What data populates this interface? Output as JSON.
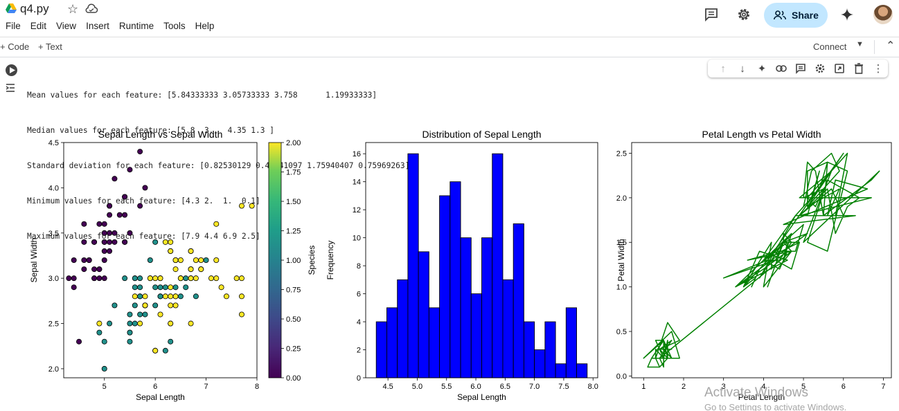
{
  "header": {
    "file_name": "q4.py",
    "menu": [
      "File",
      "Edit",
      "View",
      "Insert",
      "Runtime",
      "Tools",
      "Help"
    ],
    "share_label": "Share"
  },
  "toolbar": {
    "add_code_label": "+ Code",
    "add_text_label": "+ Text",
    "connect_label": "Connect"
  },
  "output": {
    "lines": [
      "Mean values for each feature: [5.84333333 3.05733333 3.758      1.19933333]",
      "Median values for each feature: [5.8  3.   4.35 1.3 ]",
      "Standard deviation for each feature: [0.82530129 0.43441097 1.75940407 0.75969263]",
      "Minimum values for each feature: [4.3 2.  1.  0.1]",
      "Maximum values for each feature: [7.9 4.4 6.9 2.5]"
    ]
  },
  "chart_data": [
    {
      "type": "scatter",
      "title": "Sepal Length vs Sepal Width",
      "xlabel": "Sepal Length",
      "ylabel": "Sepal Width",
      "xlim": [
        4.2,
        8.0
      ],
      "ylim": [
        1.9,
        4.5
      ],
      "xticks": [
        5,
        6,
        7,
        8
      ],
      "yticks": [
        "2.0",
        "2.5",
        "3.0",
        "3.5",
        "4.0",
        "4.5"
      ],
      "colorbar": {
        "label": "Species",
        "range": [
          0,
          2
        ],
        "ticks": [
          "0.00",
          "0.25",
          "0.50",
          "0.75",
          "1.00",
          "1.25",
          "1.50",
          "1.75",
          "2.00"
        ],
        "colormap": "viridis"
      },
      "series": [
        {
          "species": 0,
          "color": "#440154",
          "points": [
            [
              5.1,
              3.5
            ],
            [
              4.9,
              3.0
            ],
            [
              4.7,
              3.2
            ],
            [
              4.6,
              3.1
            ],
            [
              5.0,
              3.6
            ],
            [
              5.4,
              3.9
            ],
            [
              4.6,
              3.4
            ],
            [
              5.0,
              3.4
            ],
            [
              4.4,
              2.9
            ],
            [
              4.9,
              3.1
            ],
            [
              5.4,
              3.7
            ],
            [
              4.8,
              3.4
            ],
            [
              4.8,
              3.0
            ],
            [
              4.3,
              3.0
            ],
            [
              5.8,
              4.0
            ],
            [
              5.7,
              4.4
            ],
            [
              5.4,
              3.9
            ],
            [
              5.1,
              3.5
            ],
            [
              5.7,
              3.8
            ],
            [
              5.1,
              3.8
            ],
            [
              5.4,
              3.4
            ],
            [
              5.1,
              3.7
            ],
            [
              4.6,
              3.6
            ],
            [
              5.1,
              3.3
            ],
            [
              4.8,
              3.4
            ],
            [
              5.0,
              3.0
            ],
            [
              5.0,
              3.4
            ],
            [
              5.2,
              3.5
            ],
            [
              5.2,
              3.4
            ],
            [
              4.7,
              3.2
            ],
            [
              4.8,
              3.1
            ],
            [
              5.4,
              3.4
            ],
            [
              5.2,
              4.1
            ],
            [
              5.5,
              4.2
            ],
            [
              4.9,
              3.1
            ],
            [
              5.0,
              3.2
            ],
            [
              5.5,
              3.5
            ],
            [
              4.9,
              3.6
            ],
            [
              4.4,
              3.0
            ],
            [
              5.1,
              3.4
            ],
            [
              5.0,
              3.5
            ],
            [
              4.5,
              2.3
            ],
            [
              4.4,
              3.2
            ],
            [
              5.0,
              3.5
            ],
            [
              5.1,
              3.8
            ],
            [
              4.8,
              3.0
            ],
            [
              5.1,
              3.8
            ],
            [
              4.6,
              3.2
            ],
            [
              5.3,
              3.7
            ],
            [
              5.0,
              3.3
            ]
          ]
        },
        {
          "species": 1,
          "color": "#21918c",
          "points": [
            [
              7.0,
              3.2
            ],
            [
              6.4,
              3.2
            ],
            [
              6.9,
              3.1
            ],
            [
              5.5,
              2.3
            ],
            [
              6.5,
              2.8
            ],
            [
              5.7,
              2.8
            ],
            [
              6.3,
              3.3
            ],
            [
              4.9,
              2.4
            ],
            [
              6.6,
              2.9
            ],
            [
              5.2,
              2.7
            ],
            [
              5.0,
              2.0
            ],
            [
              5.9,
              3.0
            ],
            [
              6.0,
              2.2
            ],
            [
              6.1,
              2.9
            ],
            [
              5.6,
              2.9
            ],
            [
              6.7,
              3.1
            ],
            [
              5.6,
              3.0
            ],
            [
              5.8,
              2.7
            ],
            [
              6.2,
              2.2
            ],
            [
              5.6,
              2.5
            ],
            [
              5.9,
              3.2
            ],
            [
              6.1,
              2.8
            ],
            [
              6.3,
              2.5
            ],
            [
              6.1,
              2.8
            ],
            [
              6.4,
              2.9
            ],
            [
              6.6,
              3.0
            ],
            [
              6.8,
              2.8
            ],
            [
              6.7,
              3.0
            ],
            [
              6.0,
              2.9
            ],
            [
              5.7,
              2.6
            ],
            [
              5.5,
              2.4
            ],
            [
              5.5,
              2.4
            ],
            [
              5.8,
              2.7
            ],
            [
              6.0,
              2.7
            ],
            [
              5.4,
              3.0
            ],
            [
              6.0,
              3.4
            ],
            [
              6.7,
              3.1
            ],
            [
              6.3,
              2.3
            ],
            [
              5.6,
              3.0
            ],
            [
              5.5,
              2.5
            ],
            [
              5.5,
              2.6
            ],
            [
              6.1,
              3.0
            ],
            [
              5.8,
              2.6
            ],
            [
              5.0,
              2.3
            ],
            [
              5.6,
              2.7
            ],
            [
              5.7,
              3.0
            ],
            [
              5.7,
              2.9
            ],
            [
              6.2,
              2.9
            ],
            [
              5.1,
              2.5
            ],
            [
              5.7,
              2.8
            ]
          ]
        },
        {
          "species": 2,
          "color": "#fde725",
          "points": [
            [
              6.3,
              3.3
            ],
            [
              5.8,
              2.7
            ],
            [
              7.1,
              3.0
            ],
            [
              6.3,
              2.9
            ],
            [
              6.5,
              3.0
            ],
            [
              7.6,
              3.0
            ],
            [
              4.9,
              2.5
            ],
            [
              7.3,
              2.9
            ],
            [
              6.7,
              2.5
            ],
            [
              7.2,
              3.6
            ],
            [
              6.5,
              3.2
            ],
            [
              6.4,
              2.7
            ],
            [
              6.8,
              3.0
            ],
            [
              5.7,
              2.5
            ],
            [
              5.8,
              2.8
            ],
            [
              6.4,
              3.2
            ],
            [
              6.5,
              3.0
            ],
            [
              7.7,
              3.8
            ],
            [
              7.7,
              2.6
            ],
            [
              6.0,
              2.2
            ],
            [
              6.9,
              3.2
            ],
            [
              5.6,
              2.8
            ],
            [
              7.7,
              2.8
            ],
            [
              6.3,
              2.7
            ],
            [
              6.7,
              3.3
            ],
            [
              7.2,
              3.2
            ],
            [
              6.2,
              2.8
            ],
            [
              6.1,
              3.0
            ],
            [
              6.4,
              2.8
            ],
            [
              7.2,
              3.0
            ],
            [
              7.4,
              2.8
            ],
            [
              7.9,
              3.8
            ],
            [
              6.4,
              2.8
            ],
            [
              6.3,
              2.8
            ],
            [
              6.1,
              2.6
            ],
            [
              7.7,
              3.0
            ],
            [
              6.3,
              3.4
            ],
            [
              6.4,
              3.1
            ],
            [
              6.0,
              3.0
            ],
            [
              6.9,
              3.1
            ],
            [
              6.7,
              3.1
            ],
            [
              6.9,
              3.1
            ],
            [
              5.8,
              2.7
            ],
            [
              6.8,
              3.2
            ],
            [
              6.7,
              3.3
            ],
            [
              6.7,
              3.0
            ],
            [
              6.3,
              2.5
            ],
            [
              6.5,
              3.0
            ],
            [
              6.2,
              3.4
            ],
            [
              5.9,
              3.0
            ]
          ]
        }
      ]
    },
    {
      "type": "bar",
      "title": "Distribution of Sepal Length",
      "xlabel": "Sepal Length",
      "ylabel": "Frequency",
      "bar_color": "#0000ff",
      "bin_start": 4.3,
      "bin_width": 0.18,
      "values": [
        4,
        5,
        7,
        16,
        9,
        5,
        13,
        14,
        10,
        6,
        10,
        16,
        7,
        11,
        4,
        2,
        4,
        1,
        5,
        1
      ],
      "xlim": [
        4.12,
        8.08
      ],
      "ylim": [
        0,
        16.8
      ],
      "xticks": [
        "4.5",
        "5.0",
        "5.5",
        "6.0",
        "6.5",
        "7.0",
        "7.5",
        "8.0"
      ],
      "yticks": [
        0,
        2,
        4,
        6,
        8,
        10,
        12,
        14,
        16
      ]
    },
    {
      "type": "line",
      "title": "Petal Length vs Petal Width",
      "xlabel": "Petal Length",
      "ylabel": "Petal Width",
      "line_color": "#008000",
      "xlim": [
        0.7,
        7.2
      ],
      "ylim": [
        -0.02,
        2.62
      ],
      "xticks": [
        1,
        2,
        3,
        4,
        5,
        6,
        7
      ],
      "yticks": [
        "0.0",
        "0.5",
        "1.0",
        "1.5",
        "2.0",
        "2.5"
      ],
      "x": [
        1.4,
        1.4,
        1.3,
        1.5,
        1.4,
        1.7,
        1.4,
        1.5,
        1.4,
        1.5,
        1.5,
        1.6,
        1.4,
        1.1,
        1.2,
        1.5,
        1.3,
        1.4,
        1.7,
        1.5,
        1.7,
        1.5,
        1.0,
        1.7,
        1.9,
        1.6,
        1.6,
        1.5,
        1.4,
        1.6,
        1.6,
        1.5,
        1.5,
        1.4,
        1.5,
        1.2,
        1.3,
        1.4,
        1.3,
        1.5,
        1.3,
        1.3,
        1.3,
        1.6,
        1.9,
        1.4,
        1.6,
        1.4,
        1.5,
        1.4,
        4.7,
        4.5,
        4.9,
        4.0,
        4.6,
        4.5,
        4.7,
        3.3,
        4.6,
        3.9,
        3.5,
        4.2,
        4.0,
        4.7,
        3.6,
        4.4,
        4.5,
        4.1,
        4.5,
        3.9,
        4.8,
        4.0,
        4.9,
        4.7,
        4.3,
        4.4,
        4.8,
        5.0,
        4.5,
        3.5,
        3.8,
        3.7,
        3.9,
        5.1,
        4.5,
        4.5,
        4.7,
        4.4,
        4.1,
        4.0,
        4.4,
        4.6,
        4.0,
        3.3,
        4.2,
        4.2,
        4.2,
        4.3,
        3.0,
        4.1,
        6.0,
        5.1,
        5.9,
        5.6,
        5.8,
        6.6,
        4.5,
        6.3,
        5.8,
        6.1,
        5.1,
        5.3,
        5.5,
        5.0,
        5.1,
        5.3,
        5.5,
        6.7,
        6.9,
        5.0,
        5.7,
        4.9,
        6.7,
        4.9,
        5.7,
        6.0,
        4.8,
        4.9,
        5.6,
        5.8,
        6.1,
        6.4,
        5.6,
        5.1,
        5.6,
        6.1,
        5.6,
        5.5,
        4.8,
        5.4,
        5.6,
        5.1,
        5.1,
        5.9,
        5.7,
        5.2,
        5.0,
        5.2,
        5.4,
        5.1
      ],
      "y": [
        0.2,
        0.2,
        0.2,
        0.2,
        0.2,
        0.4,
        0.3,
        0.2,
        0.2,
        0.1,
        0.2,
        0.2,
        0.1,
        0.1,
        0.2,
        0.4,
        0.4,
        0.3,
        0.3,
        0.3,
        0.2,
        0.4,
        0.2,
        0.5,
        0.2,
        0.2,
        0.4,
        0.2,
        0.2,
        0.2,
        0.2,
        0.4,
        0.1,
        0.2,
        0.2,
        0.2,
        0.2,
        0.1,
        0.2,
        0.2,
        0.3,
        0.3,
        0.2,
        0.6,
        0.4,
        0.3,
        0.2,
        0.2,
        0.2,
        0.2,
        1.4,
        1.5,
        1.5,
        1.3,
        1.5,
        1.3,
        1.6,
        1.0,
        1.3,
        1.4,
        1.0,
        1.5,
        1.0,
        1.4,
        1.3,
        1.4,
        1.5,
        1.0,
        1.5,
        1.1,
        1.8,
        1.3,
        1.5,
        1.2,
        1.3,
        1.4,
        1.4,
        1.7,
        1.5,
        1.0,
        1.1,
        1.0,
        1.2,
        1.6,
        1.5,
        1.6,
        1.5,
        1.3,
        1.3,
        1.3,
        1.2,
        1.4,
        1.2,
        1.0,
        1.3,
        1.2,
        1.3,
        1.3,
        1.1,
        1.3,
        2.5,
        1.9,
        2.1,
        1.8,
        2.2,
        2.1,
        1.7,
        1.8,
        1.8,
        2.5,
        2.0,
        1.9,
        2.1,
        2.0,
        2.4,
        2.3,
        1.8,
        2.2,
        2.3,
        1.5,
        2.3,
        2.0,
        2.0,
        1.8,
        2.1,
        1.8,
        1.8,
        1.8,
        2.1,
        1.6,
        1.9,
        2.0,
        2.2,
        1.5,
        1.4,
        2.3,
        2.4,
        1.8,
        1.8,
        2.1,
        2.4,
        2.3,
        1.9,
        2.3,
        2.5,
        2.3,
        1.9,
        2.0,
        2.3,
        1.8
      ]
    }
  ],
  "watermark": {
    "line1": "Activate Windows",
    "line2": "Go to Settings to activate Windows."
  }
}
